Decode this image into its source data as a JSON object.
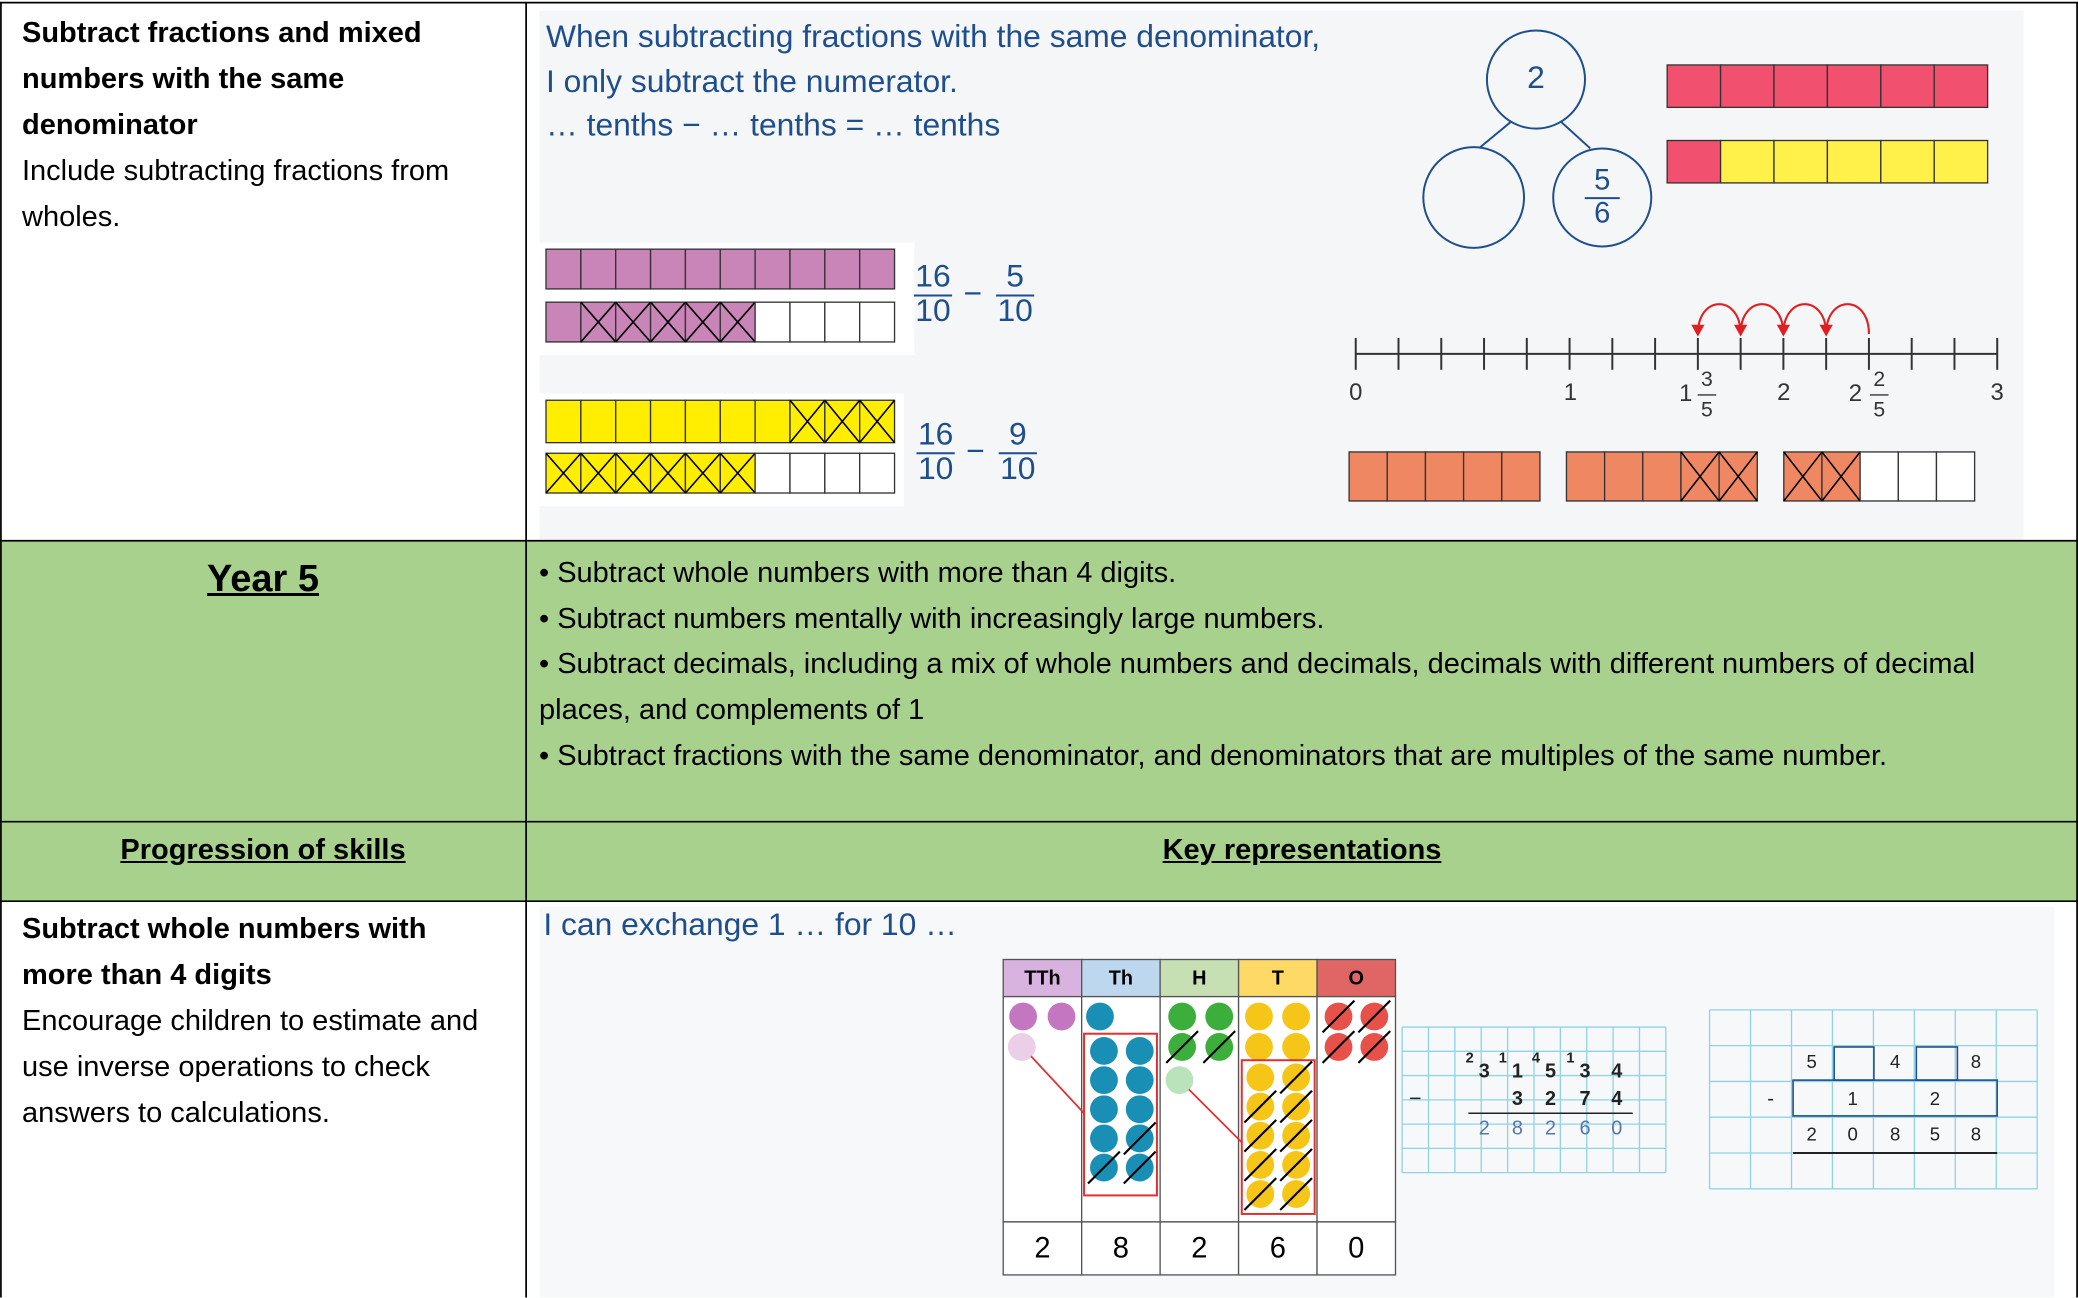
{
  "section1": {
    "title": "Subtract fractions and mixed numbers with the same denominator",
    "note": "Include subtracting fractions from wholes.",
    "sentences": [
      "When subtracting fractions with the same denominator,",
      "I only subtract the numerator.",
      "… tenths − … tenths = … tenths"
    ],
    "part_whole": {
      "whole": "2",
      "part": {
        "numerator": "5",
        "denominator": "6"
      }
    },
    "calculations": [
      {
        "minuend": {
          "numerator": "16",
          "denominator": "10"
        },
        "operator": "−",
        "subtrahend": {
          "numerator": "5",
          "denominator": "10"
        }
      },
      {
        "minuend": {
          "numerator": "16",
          "denominator": "10"
        },
        "operator": "−",
        "subtrahend": {
          "numerator": "9",
          "denominator": "10"
        }
      }
    ],
    "number_line": {
      "labels": [
        "0",
        "1",
        "2",
        "3"
      ],
      "mixed_numbers": [
        {
          "whole": "1",
          "numerator": "3",
          "denominator": "5"
        },
        {
          "whole": "2",
          "numerator": "2",
          "denominator": "5"
        }
      ]
    }
  },
  "year5": {
    "heading": "Year 5",
    "bullets": [
      "• Subtract whole numbers with more than 4 digits.",
      "• Subtract numbers mentally with increasingly large numbers.",
      "• Subtract decimals, including a mix of whole numbers and decimals, decimals with different numbers of decimal places, and complements of 1",
      "• Subtract fractions with the same denominator, and denominators that are multiples of the same number."
    ]
  },
  "headers": {
    "skills": "Progression of skills",
    "representations": "Key representations"
  },
  "section2": {
    "title": "Subtract whole numbers with more than 4 digits",
    "note": "Encourage children to estimate and use inverse operations to check answers to calculations.",
    "sentence": "I can exchange 1 … for 10 …",
    "place_value": {
      "columns": [
        "TTh",
        "Th",
        "H",
        "T",
        "O"
      ],
      "digits": [
        "2",
        "8",
        "2",
        "6",
        "0"
      ]
    },
    "column_method_1": {
      "exchanges": [
        "2",
        "1",
        "4",
        "1"
      ],
      "minuend": [
        "3",
        "1",
        "5",
        "3",
        "4"
      ],
      "operator": "−",
      "subtrahend": [
        "3",
        "2",
        "7",
        "4"
      ],
      "difference": [
        "2",
        "8",
        "2",
        "6",
        "0"
      ]
    },
    "column_method_2": {
      "top": [
        "5",
        "4",
        "8"
      ],
      "operator": "-",
      "middle": [
        "1",
        "2"
      ],
      "difference": [
        "2",
        "0",
        "8",
        "5",
        "8"
      ]
    }
  }
}
